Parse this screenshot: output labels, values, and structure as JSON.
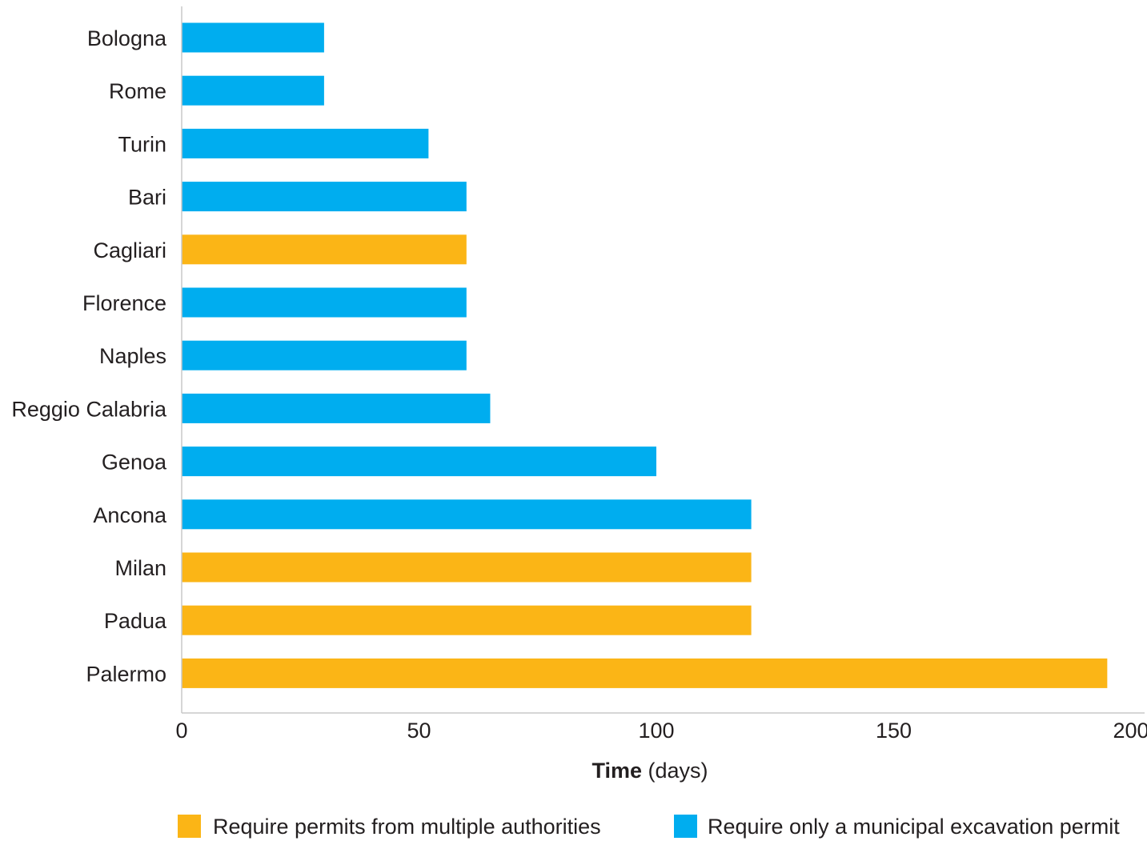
{
  "chart_data": {
    "type": "bar",
    "orientation": "horizontal",
    "title": "",
    "categories": [
      "Bologna",
      "Rome",
      "Turin",
      "Bari",
      "Cagliari",
      "Florence",
      "Naples",
      "Reggio Calabria",
      "Genoa",
      "Ancona",
      "Milan",
      "Padua",
      "Palermo"
    ],
    "values": [
      30,
      30,
      52,
      60,
      60,
      60,
      60,
      65,
      100,
      120,
      120,
      120,
      195
    ],
    "groups": [
      "municipal",
      "municipal",
      "municipal",
      "municipal",
      "multiple",
      "municipal",
      "municipal",
      "municipal",
      "municipal",
      "municipal",
      "multiple",
      "multiple",
      "multiple"
    ],
    "xlabel": {
      "bold": "Time",
      "rest": " (days)"
    },
    "xlim": [
      0,
      200
    ],
    "xticks": [
      0,
      50,
      100,
      150,
      200
    ],
    "grid": false,
    "legend_position": "bottom",
    "series": [
      {
        "key": "multiple",
        "name": "Require permits from multiple authorities",
        "color": "#fbb516"
      },
      {
        "key": "municipal",
        "name": "Require only a municipal excavation permit",
        "color": "#00adef"
      }
    ]
  },
  "colors": {
    "axis_line": "#c8c8c8",
    "text": "#231f20"
  }
}
